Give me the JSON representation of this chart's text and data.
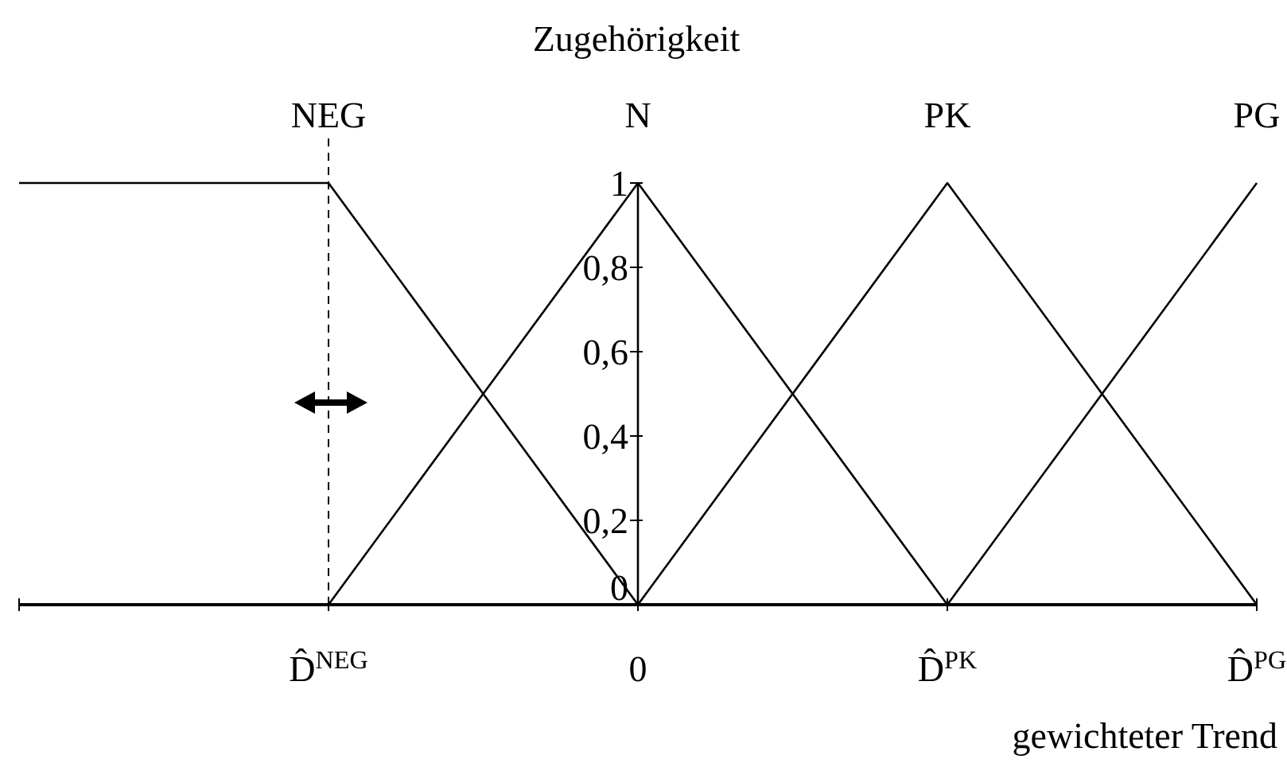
{
  "chart_data": {
    "type": "line",
    "xlabel": "gewichteter Trend",
    "ylabel": "Zugehörigkeit",
    "categories": [
      null,
      "D̂$^{NEG}$",
      "0",
      "D̂$^{PK}$",
      "D̂$^{PG}$"
    ],
    "series": [
      {
        "name": "NEG",
        "color": "#000000",
        "values": [
          1,
          1,
          0,
          null,
          null
        ]
      },
      {
        "name": "N",
        "color": "#000000",
        "values": [
          null,
          0,
          1,
          0,
          null
        ]
      },
      {
        "name": "PK",
        "color": "#000000",
        "values": [
          null,
          null,
          0,
          1,
          0
        ]
      },
      {
        "name": "PG",
        "color": "#000000",
        "values": [
          null,
          null,
          null,
          0,
          1
        ]
      }
    ],
    "ylim": [
      0,
      1
    ],
    "yticks": [
      0,
      {
        "value": 0.2,
        "label": "0,2"
      },
      {
        "value": 0.4,
        "label": "0,4"
      },
      {
        "value": 0.6,
        "label": "0,6"
      },
      {
        "value": 0.8,
        "label": "0,8"
      },
      1
    ],
    "ref_lines": [
      {
        "axis": "x",
        "value": "D̂$^{NEG}$",
        "line_style": "dashed",
        "color": "#000000"
      }
    ],
    "grid": false,
    "marker": "none",
    "line_style": "solid"
  }
}
